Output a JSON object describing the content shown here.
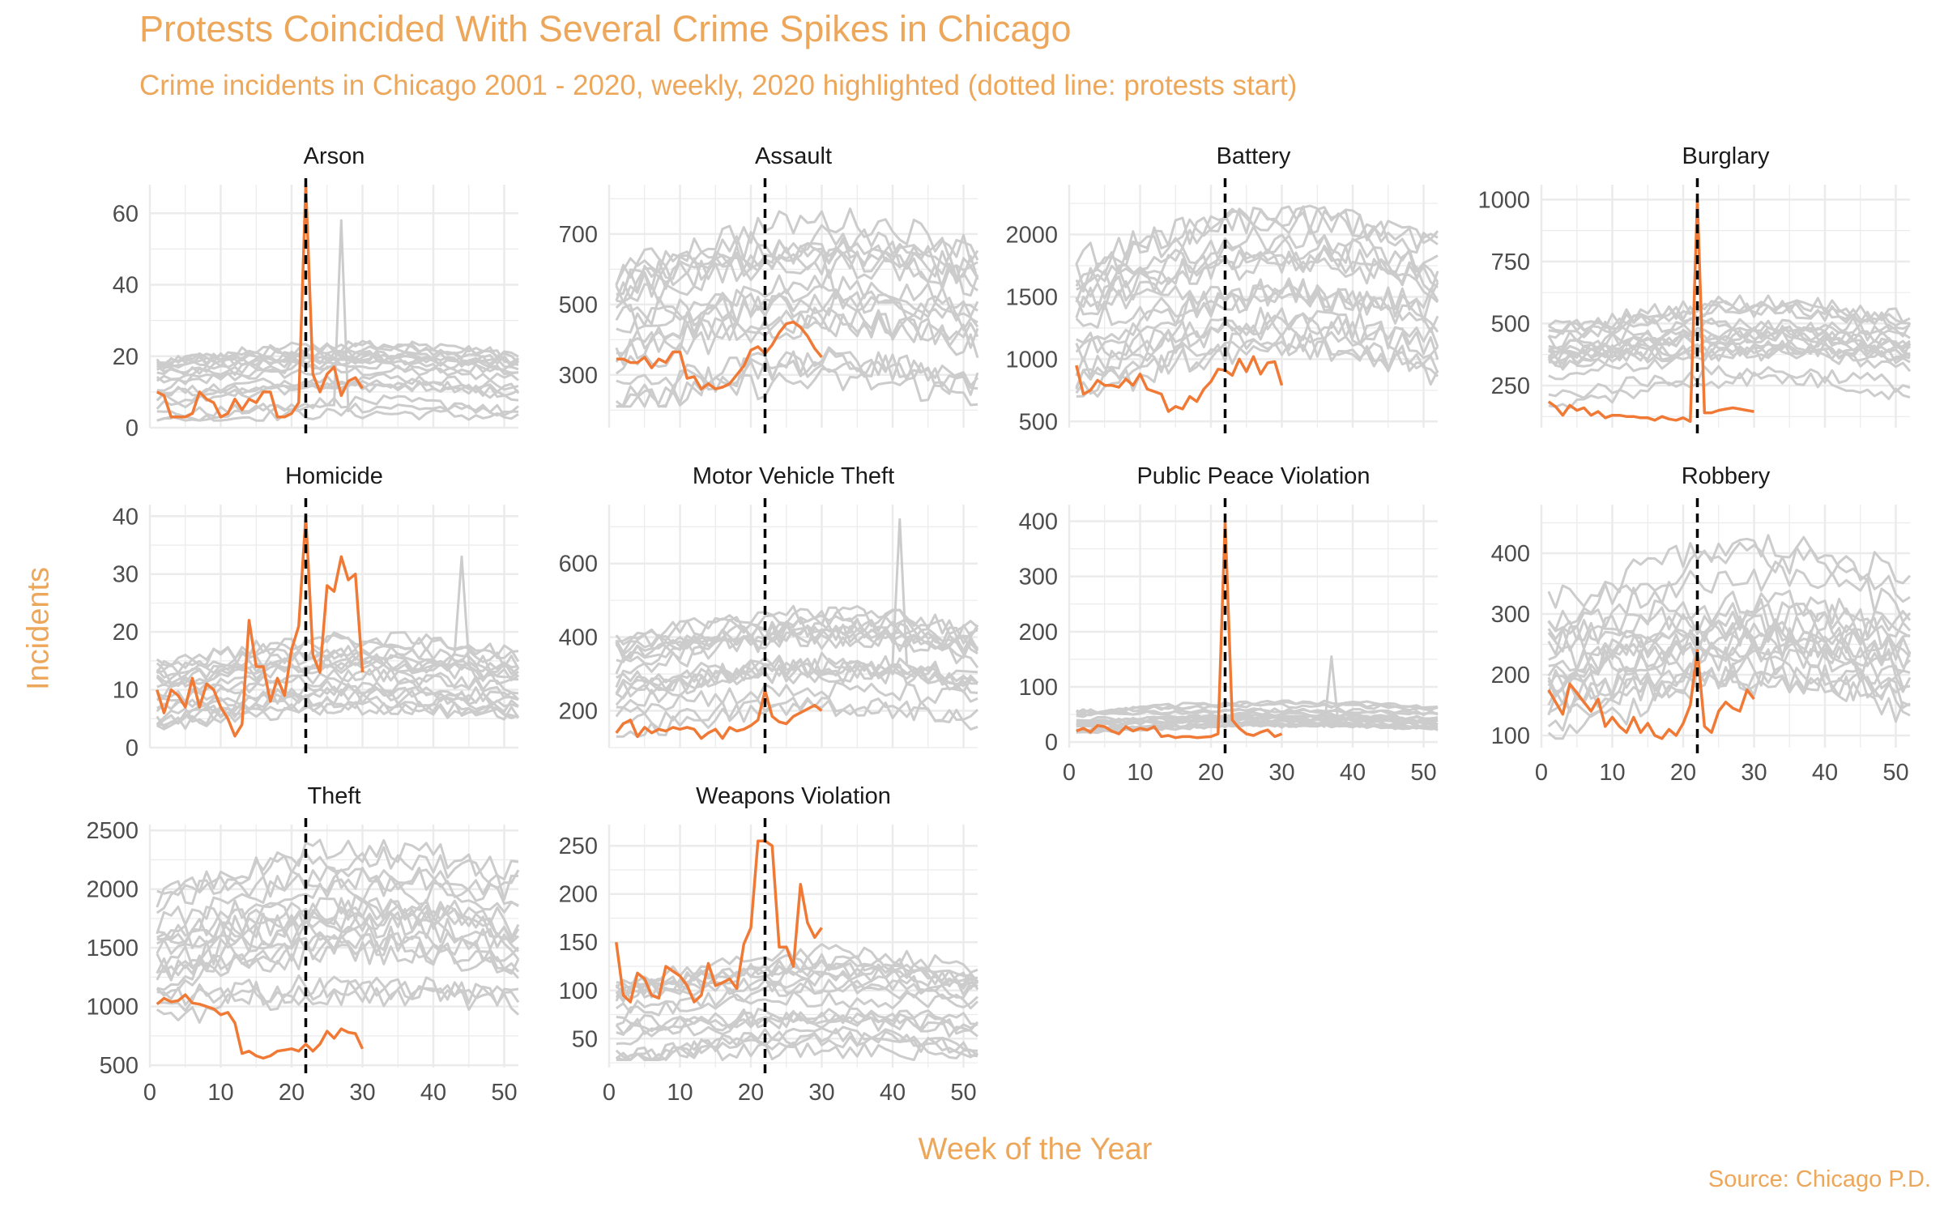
{
  "title": "Protests Coincided With Several Crime Spikes in Chicago",
  "subtitle": "Crime incidents in Chicago 2001 - 2020, weekly, 2020 highlighted (dotted line: protests start)",
  "caption": "Source: Chicago P.D.",
  "axes": {
    "x_label": "Week of the Year",
    "y_label": "Incidents"
  },
  "colors": {
    "highlight": "#f07a35",
    "background_lines": "#cccccc",
    "grid": "#ebebeb",
    "text": "#eda75b",
    "protest_line": "#000000"
  },
  "chart_data": [
    {
      "type": "line",
      "panel": "Arson",
      "xlim": [
        0,
        52
      ],
      "ylim": [
        0,
        68
      ],
      "x_ticks": [],
      "y_ticks": [
        0,
        20,
        40,
        60
      ],
      "protest_week": 22,
      "highlight": {
        "x": [
          1,
          2,
          3,
          4,
          5,
          6,
          7,
          8,
          9,
          10,
          11,
          12,
          13,
          14,
          15,
          16,
          17,
          18,
          19,
          20,
          21,
          22,
          23,
          24,
          25,
          26,
          27,
          28,
          29,
          30
        ],
        "y": [
          10,
          9,
          3,
          3,
          3,
          4,
          10,
          8,
          7,
          3,
          4,
          8,
          5,
          8,
          7,
          10,
          10,
          3,
          3,
          4,
          7,
          68,
          15,
          10,
          15,
          17,
          9,
          13,
          14,
          11
        ]
      },
      "background": {
        "weeks": 52,
        "min": 2,
        "max": 25,
        "spike": {
          "week": 27,
          "value": 58
        }
      }
    },
    {
      "type": "line",
      "panel": "Assault",
      "xlim": [
        0,
        52
      ],
      "ylim": [
        150,
        840
      ],
      "x_ticks": [],
      "y_ticks": [
        300,
        500,
        700
      ],
      "protest_week": 22,
      "highlight": {
        "x": [
          1,
          2,
          3,
          4,
          5,
          6,
          7,
          8,
          9,
          10,
          11,
          12,
          13,
          14,
          15,
          16,
          17,
          18,
          19,
          20,
          21,
          22,
          23,
          24,
          25,
          26,
          27,
          28,
          29,
          30
        ],
        "y": [
          345,
          345,
          335,
          335,
          350,
          320,
          345,
          335,
          365,
          365,
          290,
          295,
          260,
          275,
          260,
          265,
          275,
          300,
          325,
          370,
          380,
          360,
          385,
          420,
          445,
          450,
          435,
          410,
          375,
          350
        ]
      },
      "background": {
        "weeks": 52,
        "min": 210,
        "max": 790
      }
    },
    {
      "type": "line",
      "panel": "Battery",
      "xlim": [
        0,
        52
      ],
      "ylim": [
        450,
        2400
      ],
      "x_ticks": [],
      "y_ticks": [
        500,
        1000,
        1500,
        2000
      ],
      "protest_week": 22,
      "highlight": {
        "x": [
          1,
          2,
          3,
          4,
          5,
          6,
          7,
          8,
          9,
          10,
          11,
          12,
          13,
          14,
          15,
          16,
          17,
          18,
          19,
          20,
          21,
          22,
          23,
          24,
          25,
          26,
          27,
          28,
          29,
          30
        ],
        "y": [
          950,
          720,
          750,
          830,
          790,
          790,
          775,
          840,
          790,
          880,
          760,
          740,
          720,
          580,
          620,
          600,
          700,
          660,
          760,
          820,
          920,
          910,
          870,
          1000,
          900,
          1020,
          880,
          970,
          980,
          790
        ]
      },
      "background": {
        "weeks": 52,
        "min": 700,
        "max": 2300
      }
    },
    {
      "type": "line",
      "panel": "Burglary",
      "xlim": [
        0,
        52
      ],
      "ylim": [
        80,
        1060
      ],
      "x_ticks": [],
      "y_ticks": [
        250,
        500,
        750,
        1000
      ],
      "protest_week": 22,
      "highlight": {
        "x": [
          1,
          2,
          3,
          4,
          5,
          6,
          7,
          8,
          9,
          10,
          11,
          12,
          13,
          14,
          15,
          16,
          17,
          18,
          19,
          20,
          21,
          22,
          23,
          24,
          25,
          26,
          27,
          28,
          29,
          30
        ],
        "y": [
          185,
          165,
          130,
          170,
          150,
          160,
          130,
          145,
          120,
          130,
          130,
          125,
          125,
          120,
          120,
          110,
          125,
          115,
          110,
          120,
          105,
          1000,
          140,
          140,
          150,
          155,
          160,
          155,
          150,
          145
        ]
      },
      "background": {
        "weeks": 52,
        "min": 160,
        "max": 620
      }
    },
    {
      "type": "line",
      "panel": "Homicide",
      "xlim": [
        0,
        52
      ],
      "ylim": [
        0,
        42
      ],
      "x_ticks": [],
      "y_ticks": [
        0,
        10,
        20,
        30,
        40
      ],
      "protest_week": 22,
      "highlight": {
        "x": [
          1,
          2,
          3,
          4,
          5,
          6,
          7,
          8,
          9,
          10,
          11,
          12,
          13,
          14,
          15,
          16,
          17,
          18,
          19,
          20,
          21,
          22,
          23,
          24,
          25,
          26,
          27,
          28,
          29,
          30
        ],
        "y": [
          10,
          6,
          10,
          9,
          7,
          12,
          7,
          11,
          10,
          7,
          5,
          2,
          4,
          22,
          14,
          14,
          8,
          12,
          9,
          17,
          21,
          40,
          16,
          13,
          28,
          27,
          33,
          29,
          30,
          13
        ]
      },
      "background": {
        "weeks": 52,
        "min": 2,
        "max": 21,
        "spike": {
          "week": 44,
          "value": 33
        }
      }
    },
    {
      "type": "line",
      "panel": "Motor Vehicle Theft",
      "xlim": [
        0,
        52
      ],
      "ylim": [
        100,
        760
      ],
      "x_ticks": [],
      "y_ticks": [
        200,
        400,
        600
      ],
      "protest_week": 22,
      "highlight": {
        "x": [
          1,
          2,
          3,
          4,
          5,
          6,
          7,
          8,
          9,
          10,
          11,
          12,
          13,
          14,
          15,
          16,
          17,
          18,
          19,
          20,
          21,
          22,
          23,
          24,
          25,
          26,
          27,
          28,
          29,
          30
        ],
        "y": [
          140,
          165,
          175,
          130,
          155,
          140,
          150,
          145,
          155,
          150,
          155,
          150,
          125,
          140,
          150,
          125,
          155,
          145,
          150,
          160,
          175,
          255,
          185,
          170,
          165,
          185,
          195,
          205,
          215,
          200
        ]
      },
      "background": {
        "weeks": 52,
        "min": 130,
        "max": 520,
        "spike": {
          "week": 41,
          "value": 720
        }
      }
    },
    {
      "type": "line",
      "panel": "Public Peace Violation",
      "xlim": [
        0,
        52
      ],
      "ylim": [
        -10,
        430
      ],
      "x_ticks": [
        0,
        10,
        20,
        30,
        40,
        50
      ],
      "y_ticks": [
        0,
        100,
        200,
        300,
        400
      ],
      "protest_week": 22,
      "highlight": {
        "x": [
          1,
          2,
          3,
          4,
          5,
          6,
          7,
          8,
          9,
          10,
          11,
          12,
          13,
          14,
          15,
          16,
          17,
          18,
          19,
          20,
          21,
          22,
          23,
          24,
          25,
          26,
          27,
          28,
          29,
          30
        ],
        "y": [
          20,
          25,
          18,
          30,
          28,
          20,
          15,
          28,
          20,
          25,
          22,
          28,
          10,
          12,
          8,
          10,
          10,
          8,
          9,
          10,
          15,
          400,
          40,
          25,
          15,
          12,
          18,
          22,
          10,
          15
        ]
      },
      "background": {
        "weeks": 52,
        "min": 15,
        "max": 75,
        "spike": {
          "week": 37,
          "value": 155
        }
      }
    },
    {
      "type": "line",
      "panel": "Robbery",
      "xlim": [
        0,
        52
      ],
      "ylim": [
        80,
        480
      ],
      "x_ticks": [
        0,
        10,
        20,
        30,
        40,
        50
      ],
      "y_ticks": [
        100,
        200,
        300,
        400
      ],
      "protest_week": 22,
      "highlight": {
        "x": [
          1,
          2,
          3,
          4,
          5,
          6,
          7,
          8,
          9,
          10,
          11,
          12,
          13,
          14,
          15,
          16,
          17,
          18,
          19,
          20,
          21,
          22,
          23,
          24,
          25,
          26,
          27,
          28,
          29,
          30
        ],
        "y": [
          175,
          155,
          135,
          185,
          170,
          155,
          140,
          160,
          115,
          130,
          115,
          105,
          130,
          105,
          120,
          100,
          95,
          110,
          100,
          120,
          150,
          240,
          115,
          105,
          140,
          155,
          145,
          140,
          175,
          160
        ]
      },
      "background": {
        "weeks": 52,
        "min": 95,
        "max": 465
      }
    },
    {
      "type": "line",
      "panel": "Theft",
      "xlim": [
        0,
        52
      ],
      "ylim": [
        480,
        2550
      ],
      "x_ticks": [
        0,
        10,
        20,
        30,
        40,
        50
      ],
      "y_ticks": [
        500,
        1000,
        1500,
        2000,
        2500
      ],
      "protest_week": 22,
      "highlight": {
        "x": [
          1,
          2,
          3,
          4,
          5,
          6,
          7,
          8,
          9,
          10,
          11,
          12,
          13,
          14,
          15,
          16,
          17,
          18,
          19,
          20,
          21,
          22,
          23,
          24,
          25,
          26,
          27,
          28,
          29,
          30
        ],
        "y": [
          1020,
          1070,
          1040,
          1050,
          1100,
          1030,
          1020,
          1000,
          980,
          930,
          950,
          860,
          600,
          620,
          580,
          560,
          580,
          620,
          630,
          640,
          620,
          680,
          620,
          680,
          790,
          730,
          810,
          780,
          770,
          640
        ]
      },
      "background": {
        "weeks": 52,
        "min": 850,
        "max": 2450
      }
    },
    {
      "type": "line",
      "panel": "Weapons Violation",
      "xlim": [
        0,
        52
      ],
      "ylim": [
        20,
        272
      ],
      "x_ticks": [
        0,
        10,
        20,
        30,
        40,
        50
      ],
      "y_ticks": [
        50,
        100,
        150,
        200,
        250
      ],
      "protest_week": 22,
      "highlight": {
        "x": [
          1,
          2,
          3,
          4,
          5,
          6,
          7,
          8,
          9,
          10,
          11,
          12,
          13,
          14,
          15,
          16,
          17,
          18,
          19,
          20,
          21,
          22,
          23,
          24,
          25,
          26,
          27,
          28,
          29,
          30
        ],
        "y": [
          150,
          95,
          88,
          118,
          112,
          95,
          92,
          125,
          120,
          115,
          105,
          88,
          95,
          128,
          105,
          108,
          112,
          102,
          148,
          165,
          255,
          255,
          250,
          145,
          145,
          125,
          210,
          170,
          155,
          165
        ]
      },
      "background": {
        "weeks": 52,
        "min": 28,
        "max": 150
      }
    }
  ]
}
